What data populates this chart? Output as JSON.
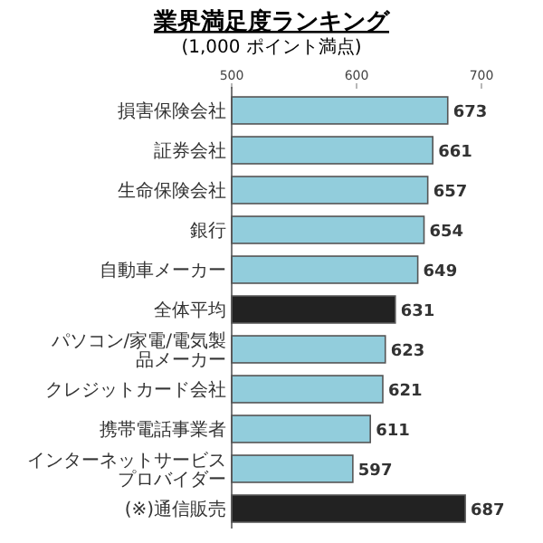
{
  "chart_data": {
    "type": "bar",
    "orientation": "horizontal",
    "title": "業界満足度ランキング",
    "subtitle": "(1,000 ポイント満点)",
    "categories": [
      "損害保険会社",
      "証券会社",
      "生命保険会社",
      "銀行",
      "自動車メーカー",
      "全体平均",
      "パソコン/家電/電気製品メーカー",
      "クレジットカード会社",
      "携帯電話事業者",
      "インターネットサービスプロバイダー",
      "(※)通信販売"
    ],
    "values": [
      673,
      661,
      657,
      654,
      649,
      631,
      623,
      621,
      611,
      597,
      687
    ],
    "colors": [
      "#92cddc",
      "#92cddc",
      "#92cddc",
      "#92cddc",
      "#92cddc",
      "#222222",
      "#92cddc",
      "#92cddc",
      "#92cddc",
      "#92cddc",
      "#222222"
    ],
    "xlim": [
      500,
      700
    ],
    "xticks": [
      500,
      600,
      700
    ],
    "data_labels": true
  }
}
